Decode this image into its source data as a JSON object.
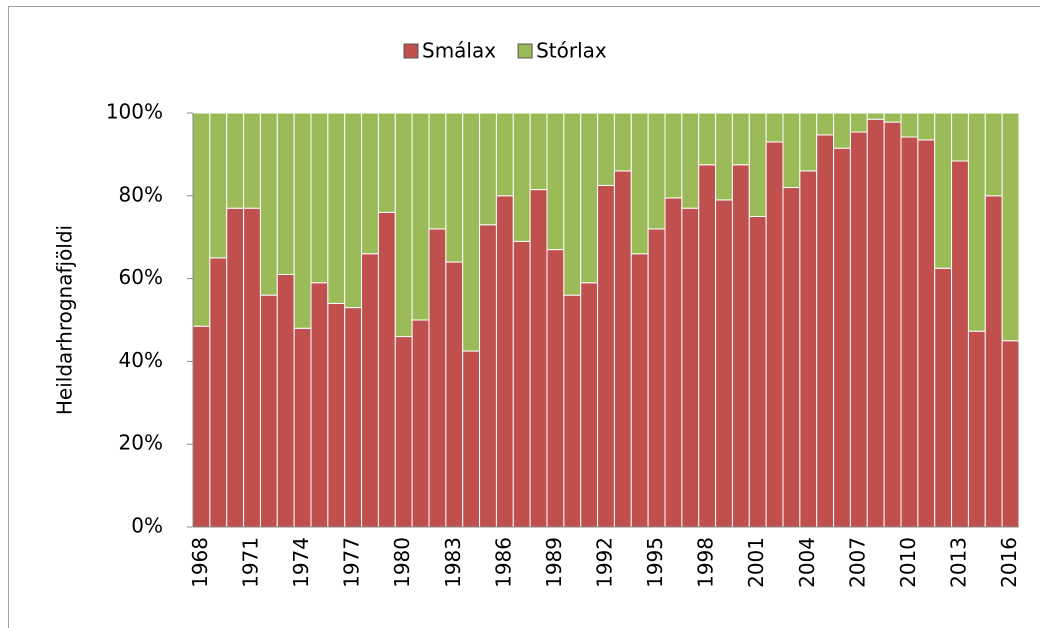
{
  "chart_data": {
    "type": "stacked_bar",
    "categories": [
      1968,
      null,
      null,
      1971,
      null,
      null,
      1974,
      null,
      null,
      1977,
      null,
      null,
      1980,
      null,
      null,
      1983,
      null,
      null,
      1986,
      null,
      null,
      1989,
      null,
      null,
      1992,
      null,
      null,
      1995,
      null,
      null,
      1998,
      null,
      null,
      2001,
      null,
      null,
      2004,
      null,
      null,
      2007,
      null,
      null,
      2010,
      null,
      null,
      2013,
      null,
      null,
      2016
    ],
    "y_label": "Heildarhrognafjöldi",
    "series": [
      {
        "name": "Smálax",
        "color": "#c0504d",
        "values": [
          48.5,
          65,
          77,
          77,
          56,
          61,
          48,
          59,
          54,
          53,
          66,
          76,
          46,
          50,
          72,
          64,
          42.5,
          73,
          80,
          69,
          81.5,
          67,
          56,
          59,
          82.5,
          86,
          66,
          72,
          79.5,
          77,
          87.5,
          79,
          87.5,
          75,
          93,
          82,
          86,
          94.7,
          91.5,
          95.4,
          98.5,
          97.8,
          94.2,
          93.5,
          62.5,
          88.4,
          47.3,
          80,
          45
        ]
      },
      {
        "name": "Stórlax",
        "color": "#9bbb59",
        "values": [
          51.5,
          35,
          23,
          23,
          44,
          39,
          52,
          41,
          46,
          47,
          34,
          24,
          54,
          50,
          28,
          36,
          57.5,
          27,
          20,
          31,
          18.5,
          33,
          44,
          41,
          17.5,
          14,
          34,
          28,
          20.5,
          23,
          12.5,
          21,
          12.5,
          25,
          7,
          18,
          14,
          5.3,
          8.5,
          4.6,
          1.5,
          2.2,
          5.8,
          6.5,
          37.5,
          11.6,
          52.7,
          20,
          55
        ]
      }
    ],
    "ylim": [
      0,
      100
    ],
    "yticks": [
      {
        "value": 0,
        "label": "0%"
      },
      {
        "value": 20,
        "label": "20%"
      },
      {
        "value": 40,
        "label": "40%"
      },
      {
        "value": 60,
        "label": "60%"
      },
      {
        "value": 80,
        "label": "80%"
      },
      {
        "value": 100,
        "label": "100%"
      }
    ],
    "legend": "top"
  }
}
